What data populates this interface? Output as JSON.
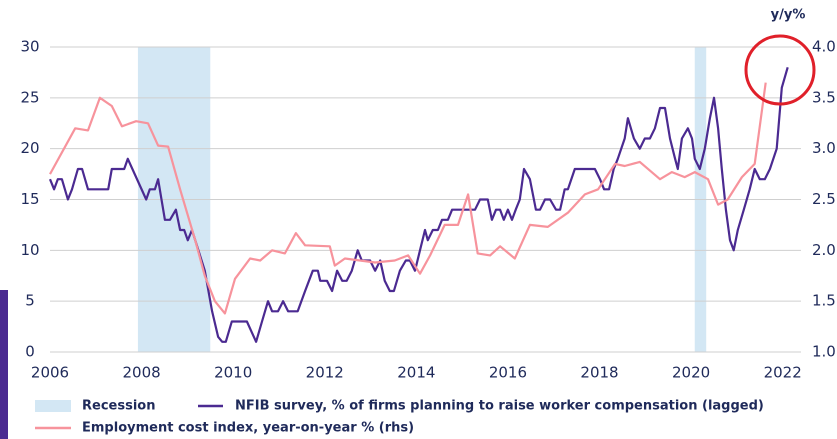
{
  "chart_data": {
    "type": "line",
    "y2_label": "y/y%",
    "xlim": [
      2006,
      2022.4
    ],
    "xticks": [
      2006,
      2008,
      2010,
      2012,
      2014,
      2016,
      2018,
      2020,
      2022
    ],
    "ylim": [
      0,
      30
    ],
    "yticks": [
      0,
      5,
      10,
      15,
      20,
      25,
      30
    ],
    "y2lim": [
      1,
      4
    ],
    "y2ticks": [
      {
        "value": 1,
        "label": "1.0"
      },
      {
        "value": 1.5,
        "label": "1.5"
      },
      {
        "value": 2,
        "label": "2.0"
      },
      {
        "value": 2.5,
        "label": "2.5"
      },
      {
        "value": 3,
        "label": "3.0"
      },
      {
        "value": 3.5,
        "label": "3.5"
      },
      {
        "value": 4,
        "label": "4.0"
      }
    ],
    "grid": true,
    "recession": {
      "name": "Recession",
      "color": "#d3e7f4",
      "periods": [
        [
          2007.92,
          2009.5
        ],
        [
          2020.08,
          2020.33
        ]
      ]
    },
    "series": [
      {
        "name": "NFIB survey, % of firms planning to raise worker compensation (lagged)",
        "color": "#4b2a91",
        "axis": "y",
        "x": [
          2006.0,
          2006.09,
          2006.17,
          2006.26,
          2006.39,
          2006.48,
          2006.61,
          2006.7,
          2006.83,
          2007.27,
          2007.35,
          2007.62,
          2007.7,
          2008.1,
          2008.18,
          2008.29,
          2008.36,
          2008.51,
          2008.62,
          2008.75,
          2008.84,
          2008.93,
          2009.01,
          2009.1,
          2009.38,
          2009.54,
          2009.67,
          2009.76,
          2009.84,
          2009.97,
          2010.3,
          2010.5,
          2010.63,
          2010.76,
          2010.85,
          2010.98,
          2011.09,
          2011.2,
          2011.41,
          2011.57,
          2011.74,
          2011.85,
          2011.9,
          2012.05,
          2012.16,
          2012.27,
          2012.38,
          2012.48,
          2012.59,
          2012.72,
          2012.81,
          2012.99,
          2013.1,
          2013.21,
          2013.31,
          2013.42,
          2013.51,
          2013.64,
          2013.77,
          2013.86,
          2013.97,
          2014.08,
          2014.19,
          2014.25,
          2014.36,
          2014.47,
          2014.56,
          2014.69,
          2014.78,
          2015.28,
          2015.39,
          2015.56,
          2015.65,
          2015.74,
          2015.83,
          2015.91,
          2016.0,
          2016.09,
          2016.17,
          2016.26,
          2016.35,
          2016.48,
          2016.61,
          2016.7,
          2016.81,
          2016.92,
          2017.05,
          2017.14,
          2017.24,
          2017.31,
          2017.46,
          2017.9,
          2018.01,
          2018.1,
          2018.21,
          2018.31,
          2018.4,
          2018.55,
          2018.62,
          2018.75,
          2018.88,
          2018.99,
          2019.1,
          2019.21,
          2019.32,
          2019.43,
          2019.54,
          2019.65,
          2019.71,
          2019.8,
          2019.93,
          2020.02,
          2020.08,
          2020.19,
          2020.3,
          2020.41,
          2020.5,
          2020.59,
          2020.67,
          2020.76,
          2020.85,
          2020.93,
          2021.02,
          2021.15,
          2021.28,
          2021.39,
          2021.5,
          2021.61,
          2021.72,
          2021.87,
          2021.98,
          2022.11
        ],
        "values": [
          17,
          16,
          17,
          17,
          15,
          16,
          18,
          18,
          16,
          16,
          18,
          18,
          19,
          15,
          16,
          16,
          17,
          13,
          13,
          14,
          12,
          12,
          11,
          12,
          8,
          4,
          1.5,
          1,
          1,
          3,
          3,
          1,
          3,
          5,
          4,
          4,
          5,
          4,
          4,
          6,
          8,
          8,
          7,
          7,
          6,
          8,
          7,
          7,
          8,
          10,
          9,
          9,
          8,
          9,
          7,
          6,
          6,
          8,
          9,
          9,
          8,
          10,
          12,
          11,
          12,
          12,
          13,
          13,
          14,
          14,
          15,
          15,
          13,
          14,
          14,
          13,
          14,
          13,
          14,
          15,
          18,
          17,
          14,
          14,
          15,
          15,
          14,
          14,
          16,
          16,
          18,
          18,
          17,
          16,
          16,
          18,
          19,
          21,
          23,
          21,
          20,
          21,
          21,
          22,
          24,
          24,
          21,
          19,
          18,
          21,
          22,
          21,
          19,
          18,
          20,
          23,
          25,
          22,
          18,
          14,
          11,
          10,
          12,
          14,
          16,
          18,
          17,
          17,
          18,
          20,
          26,
          28
        ]
      },
      {
        "name": "Employment cost index, year-on-year % (rhs)",
        "color": "#f7939c",
        "axis": "y2",
        "x": [
          2006.0,
          2006.55,
          2006.83,
          2007.09,
          2007.35,
          2007.57,
          2007.88,
          2008.14,
          2008.36,
          2008.58,
          2008.84,
          2009.17,
          2009.38,
          2009.6,
          2009.82,
          2010.04,
          2010.37,
          2010.59,
          2010.85,
          2011.13,
          2011.37,
          2011.57,
          2012.11,
          2012.22,
          2012.44,
          2012.77,
          2013.1,
          2013.53,
          2013.82,
          2014.08,
          2014.3,
          2014.62,
          2014.91,
          2015.13,
          2015.34,
          2015.61,
          2015.83,
          2016.15,
          2016.48,
          2016.87,
          2017.31,
          2017.68,
          2017.97,
          2018.34,
          2018.55,
          2018.88,
          2019.32,
          2019.58,
          2019.86,
          2020.08,
          2020.37,
          2020.59,
          2020.8,
          2021.11,
          2021.39,
          2021.63
        ],
        "values": [
          2.75,
          3.2,
          3.18,
          3.5,
          3.42,
          3.22,
          3.27,
          3.25,
          3.03,
          3.02,
          2.6,
          2.1,
          1.75,
          1.5,
          1.38,
          1.72,
          1.92,
          1.9,
          2.0,
          1.97,
          2.17,
          2.05,
          2.04,
          1.85,
          1.92,
          1.9,
          1.88,
          1.9,
          1.95,
          1.77,
          1.95,
          2.25,
          2.25,
          2.55,
          1.97,
          1.95,
          2.04,
          1.92,
          2.25,
          2.23,
          2.37,
          2.55,
          2.6,
          2.85,
          2.83,
          2.87,
          2.7,
          2.77,
          2.72,
          2.77,
          2.7,
          2.45,
          2.5,
          2.72,
          2.85,
          3.65
        ]
      }
    ]
  }
}
